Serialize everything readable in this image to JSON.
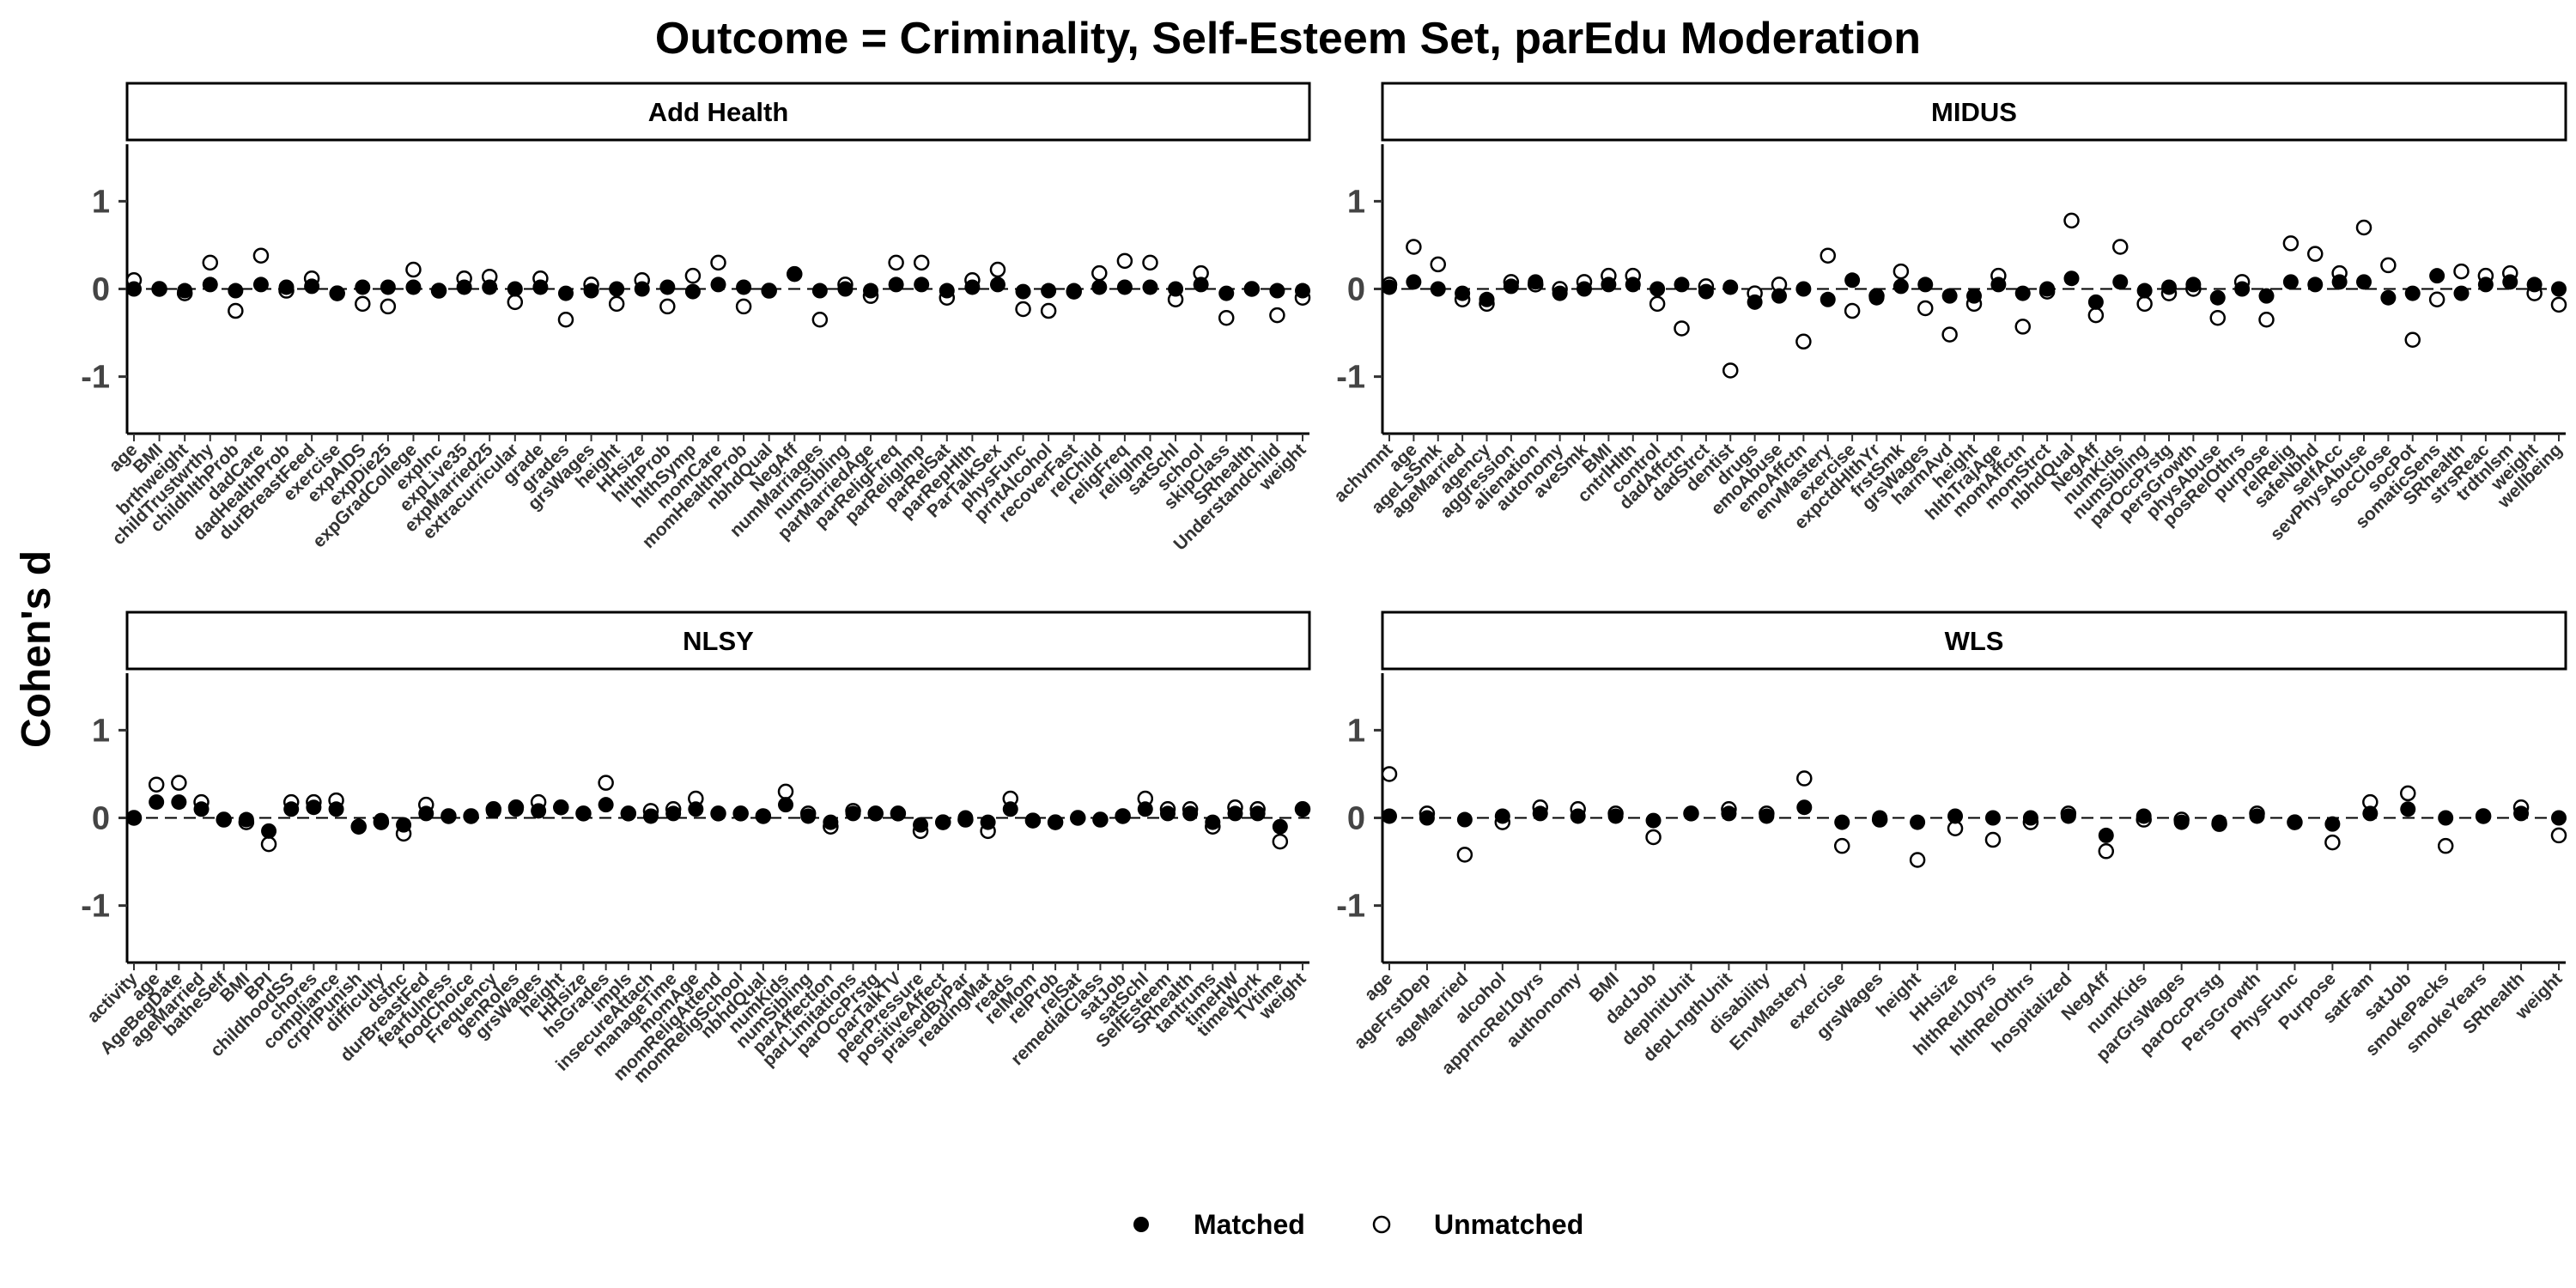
{
  "chart_data": {
    "type": "scatter",
    "title": "Outcome = Criminality, Self-Esteem Set, parEdu Moderation",
    "ylabel": "Cohen's d",
    "ylim": [
      -1.65,
      1.65
    ],
    "yticks": [
      -1,
      0,
      1
    ],
    "grid": false,
    "reference_line": 0,
    "legend": {
      "position": "bottom",
      "entries": [
        {
          "name": "Matched",
          "marker": "filled-circle"
        },
        {
          "name": "Unmatched",
          "marker": "open-circle"
        }
      ]
    },
    "panels": [
      {
        "name": "Add Health",
        "categories": [
          "age",
          "BMI",
          "brthweight",
          "childTrustwrthy",
          "childhlthProb",
          "dadCare",
          "dadHealthProb",
          "durBreastFeed",
          "exercise",
          "expAIDS",
          "expDie25",
          "expGradCollege",
          "expInc",
          "expLive35",
          "expMarried25",
          "extracurricular",
          "grade",
          "grades",
          "grsWages",
          "height",
          "HHsize",
          "hlthProb",
          "hlthSymp",
          "momCare",
          "momHealthProb",
          "nbhdQual",
          "NegAff",
          "numMarriages",
          "numSibling",
          "parMarriedAge",
          "parReligFreq",
          "parReligImp",
          "parRelSat",
          "parRepHlth",
          "ParTalkSex",
          "physFunc",
          "prntAlcohol",
          "recoverFast",
          "relChild",
          "religFreq",
          "religImp",
          "satSchl",
          "school",
          "skipClass",
          "SRhealth",
          "Understandchild",
          "weight"
        ],
        "matched": [
          0.0,
          0.0,
          -0.02,
          0.05,
          -0.02,
          0.05,
          0.02,
          0.03,
          -0.05,
          0.02,
          0.02,
          0.02,
          -0.02,
          0.02,
          0.02,
          0.0,
          0.02,
          -0.05,
          -0.02,
          0.0,
          0.0,
          0.02,
          -0.03,
          0.05,
          0.02,
          -0.02,
          0.17,
          -0.02,
          0.0,
          -0.02,
          0.05,
          0.05,
          -0.02,
          0.02,
          0.05,
          -0.03,
          -0.02,
          -0.02,
          0.02,
          0.02,
          0.02,
          0.0,
          0.05,
          -0.05,
          0.0,
          -0.02,
          -0.02
        ],
        "unmatched": [
          0.1,
          0.0,
          -0.05,
          0.3,
          -0.25,
          0.38,
          -0.02,
          0.12,
          -0.05,
          -0.17,
          -0.2,
          0.22,
          -0.02,
          0.12,
          0.14,
          -0.15,
          0.12,
          -0.35,
          0.05,
          -0.17,
          0.1,
          -0.2,
          0.15,
          0.3,
          -0.2,
          -0.02,
          0.17,
          -0.35,
          0.05,
          -0.08,
          0.3,
          0.3,
          -0.1,
          0.1,
          0.22,
          -0.23,
          -0.25,
          -0.03,
          0.18,
          0.32,
          0.3,
          -0.12,
          0.18,
          -0.33,
          0.0,
          -0.3,
          -0.1
        ]
      },
      {
        "name": "MIDUS",
        "categories": [
          "achvmnt",
          "age",
          "ageLsSmk",
          "ageMarried",
          "agency",
          "aggression",
          "alienation",
          "autonomy",
          "aveSmk",
          "BMI",
          "cntrlHlth",
          "control",
          "dadAffctn",
          "dadStrct",
          "dentist",
          "drugs",
          "emoAbuse",
          "emoAffctn",
          "envMastery",
          "exercise",
          "expctdHlthYr",
          "frstSmk",
          "grsWages",
          "harmAvd",
          "height",
          "hlthTrajAge",
          "momAffctn",
          "momStrct",
          "nbhdQual",
          "NegAff",
          "numKids",
          "numSibling",
          "parOccPrstg",
          "persGrowth",
          "physAbuse",
          "posRelOthrs",
          "purpose",
          "relRelig",
          "safeNbhd",
          "selfAcc",
          "sevPhysAbuse",
          "socClose",
          "socPot",
          "somaticSens",
          "SRhealth",
          "strsReac",
          "trdtnlsm",
          "weight",
          "wellbeing"
        ],
        "matched": [
          0.02,
          0.08,
          0.0,
          -0.05,
          -0.12,
          0.03,
          0.08,
          -0.05,
          0.0,
          0.05,
          0.05,
          0.0,
          0.05,
          -0.03,
          0.02,
          -0.15,
          -0.08,
          0.0,
          -0.12,
          0.1,
          -0.1,
          0.03,
          0.05,
          -0.08,
          -0.08,
          0.05,
          -0.05,
          0.0,
          0.12,
          -0.15,
          0.08,
          -0.02,
          0.02,
          0.05,
          -0.1,
          0.0,
          -0.08,
          0.08,
          0.05,
          0.08,
          0.08,
          -0.1,
          -0.05,
          0.15,
          -0.05,
          0.05,
          0.08,
          0.05,
          0.0
        ],
        "unmatched": [
          0.05,
          0.48,
          0.28,
          -0.12,
          -0.17,
          0.08,
          0.05,
          0.0,
          0.08,
          0.15,
          0.15,
          -0.17,
          -0.45,
          0.03,
          -0.93,
          -0.05,
          0.05,
          -0.6,
          0.38,
          -0.25,
          -0.08,
          0.2,
          -0.22,
          -0.52,
          -0.17,
          0.15,
          -0.43,
          -0.03,
          0.78,
          -0.3,
          0.48,
          -0.17,
          -0.05,
          0.0,
          -0.33,
          0.08,
          -0.35,
          0.52,
          0.4,
          0.18,
          0.7,
          0.27,
          -0.58,
          -0.12,
          0.2,
          0.15,
          0.18,
          -0.05,
          -0.18
        ]
      },
      {
        "name": "NLSY",
        "categories": [
          "activity",
          "age",
          "AgeBegDate",
          "ageMarried",
          "batheSelf",
          "BMI",
          "BPI",
          "childhoodSS",
          "chores",
          "compliance",
          "crprlPunish",
          "difficulty",
          "dstnc",
          "durBreastFed",
          "fearfulness",
          "foodChoice",
          "Frequency",
          "genRoles",
          "grsWages",
          "height",
          "HHsize",
          "hsGrades",
          "impls",
          "insecureAttach",
          "manageTime",
          "momAge",
          "momReligAttend",
          "momReligSchool",
          "nbhdQual",
          "numKids",
          "numSibling",
          "parAffection",
          "parLimitations",
          "parOccPrstg",
          "parTalkTV",
          "peerPressure",
          "positiveAffect",
          "praisedByPar",
          "readingMat",
          "reads",
          "relMom",
          "relProb",
          "relSat",
          "remedialClass",
          "satJob",
          "satSchl",
          "SelfEsteem",
          "SRhealth",
          "tantrums",
          "timeHW",
          "timeWork",
          "TVtime",
          "weight"
        ],
        "matched": [
          0.0,
          0.18,
          0.18,
          0.1,
          -0.02,
          -0.02,
          -0.15,
          0.1,
          0.12,
          0.1,
          -0.1,
          -0.03,
          -0.08,
          0.05,
          0.02,
          0.02,
          0.08,
          0.1,
          0.08,
          0.12,
          0.05,
          0.15,
          0.05,
          0.02,
          0.05,
          0.1,
          0.05,
          0.05,
          0.02,
          0.15,
          0.02,
          -0.05,
          0.05,
          0.05,
          0.05,
          -0.08,
          -0.05,
          0.0,
          -0.05,
          0.1,
          -0.03,
          -0.05,
          0.0,
          -0.02,
          0.02,
          0.1,
          0.05,
          0.05,
          -0.05,
          0.05,
          0.05,
          -0.1,
          0.1
        ],
        "unmatched": [
          0.0,
          0.38,
          0.4,
          0.18,
          -0.02,
          -0.05,
          -0.3,
          0.18,
          0.18,
          0.2,
          -0.1,
          -0.05,
          -0.18,
          0.15,
          0.02,
          0.02,
          0.1,
          0.12,
          0.18,
          0.12,
          0.05,
          0.4,
          0.05,
          0.08,
          0.1,
          0.22,
          0.05,
          0.05,
          0.02,
          0.3,
          0.05,
          -0.1,
          0.08,
          0.05,
          0.05,
          -0.15,
          -0.05,
          -0.02,
          -0.15,
          0.22,
          -0.03,
          -0.05,
          0.0,
          -0.02,
          0.02,
          0.22,
          0.1,
          0.1,
          -0.1,
          0.12,
          0.1,
          -0.27,
          0.1
        ]
      },
      {
        "name": "WLS",
        "categories": [
          "age",
          "ageFrstDep",
          "ageMarried",
          "alcohol",
          "apprncRel10yrs",
          "authonomy",
          "BMI",
          "dadJob",
          "depInitUnit",
          "depLngthUnit",
          "disability",
          "EnvMastery",
          "exercise",
          "grsWages",
          "height",
          "HHsize",
          "hlthRel10yrs",
          "hlthRelOthrs",
          "hospitalized",
          "NegAff",
          "numKids",
          "parGrsWages",
          "parOccPrstg",
          "PersGrowth",
          "PhysFunc",
          "Purpose",
          "satFam",
          "satJob",
          "smokePacks",
          "smokeYears",
          "SRhealth",
          "weight"
        ],
        "matched": [
          0.02,
          0.0,
          -0.02,
          0.02,
          0.05,
          0.02,
          0.02,
          -0.03,
          0.05,
          0.05,
          0.02,
          0.12,
          -0.05,
          0.0,
          -0.05,
          0.02,
          0.0,
          0.0,
          0.02,
          -0.2,
          0.02,
          -0.05,
          -0.05,
          0.02,
          -0.05,
          -0.07,
          0.05,
          0.1,
          0.0,
          0.02,
          0.05,
          0.0
        ],
        "unmatched": [
          0.5,
          0.05,
          -0.42,
          -0.05,
          0.12,
          0.1,
          0.05,
          -0.22,
          0.05,
          0.1,
          0.05,
          0.45,
          -0.32,
          -0.02,
          -0.48,
          -0.12,
          -0.25,
          -0.05,
          0.05,
          -0.38,
          -0.02,
          -0.02,
          -0.07,
          0.05,
          -0.05,
          -0.28,
          0.18,
          0.28,
          -0.32,
          0.02,
          0.12,
          -0.2
        ]
      }
    ]
  }
}
